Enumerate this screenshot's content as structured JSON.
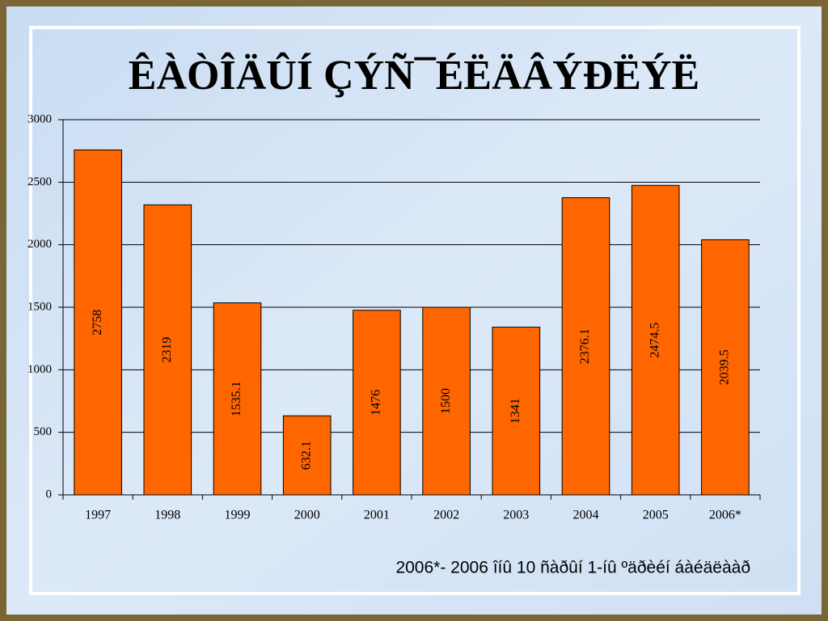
{
  "chart_data": {
    "type": "bar",
    "title": "ÊÀÒÎÄÛÍ ÇÝÑ¯ÉËÄÂÝÐËÝË",
    "categories": [
      "1997",
      "1998",
      "1999",
      "2000",
      "2001",
      "2002",
      "2003",
      "2004",
      "2005",
      "2006*"
    ],
    "values": [
      2758,
      2319,
      1535.1,
      632.1,
      1476,
      1500,
      1341,
      2376.1,
      2474.5,
      2039.5
    ],
    "color": "#ff6600",
    "ylim": [
      0,
      3000
    ],
    "yticks": [
      0,
      500,
      1000,
      1500,
      2000,
      2500,
      3000
    ],
    "grid": true,
    "footnote": "2006*- 2006 îíû 10 ñàðûí 1-íû ºäðèéí áàéäëààð"
  }
}
